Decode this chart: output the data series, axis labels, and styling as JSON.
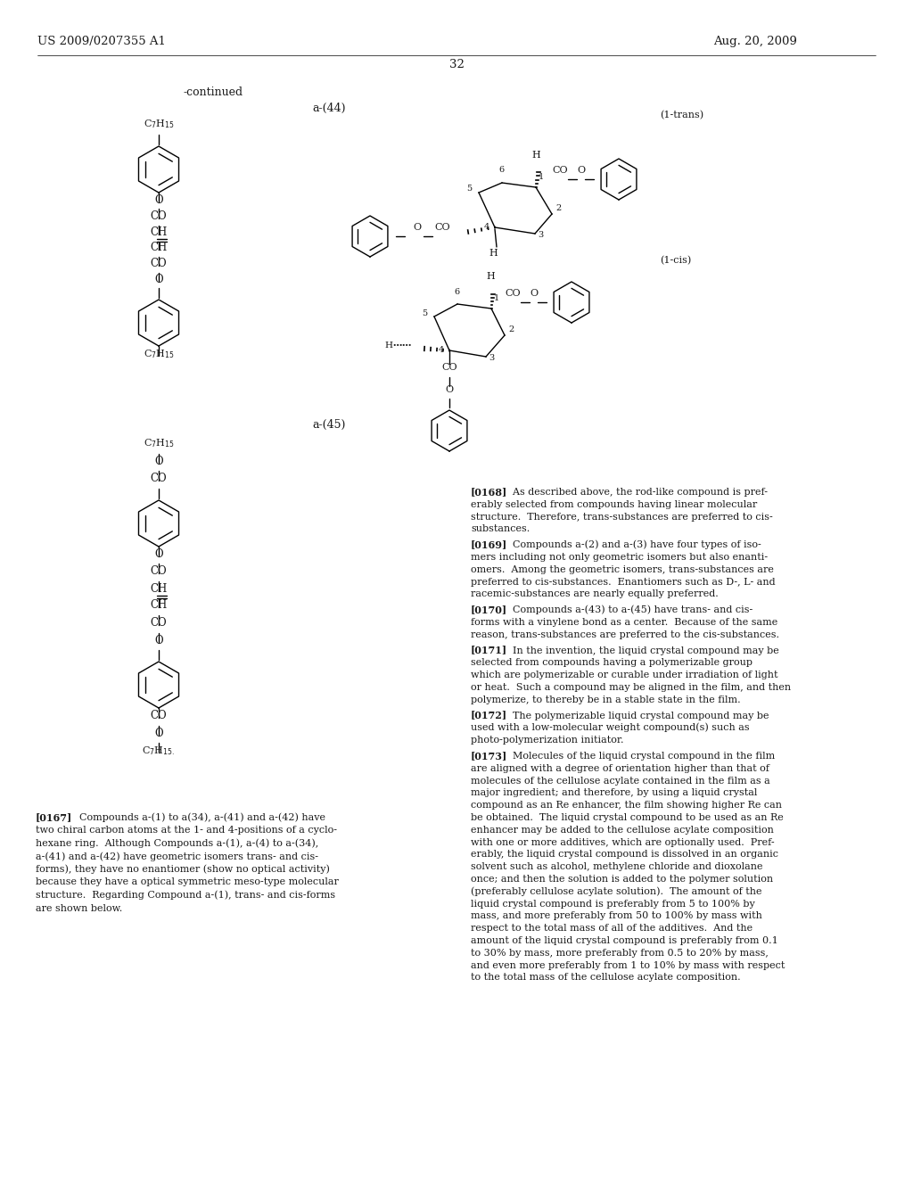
{
  "page_header_left": "US 2009/0207355 A1",
  "page_header_right": "Aug. 20, 2009",
  "page_number": "32",
  "continued_label": "-continued",
  "compound_label_44": "a-(44)",
  "compound_label_45": "a-(45)",
  "label_1trans": "(1-trans)",
  "label_1cis": "(1-cis)",
  "background_color": "#ffffff",
  "text_color": "#1a1a1a",
  "fs_header": 9.5,
  "fs_body": 8.0,
  "fs_label": 9.0,
  "fs_chem": 8.5,
  "fs_num": 7.0
}
